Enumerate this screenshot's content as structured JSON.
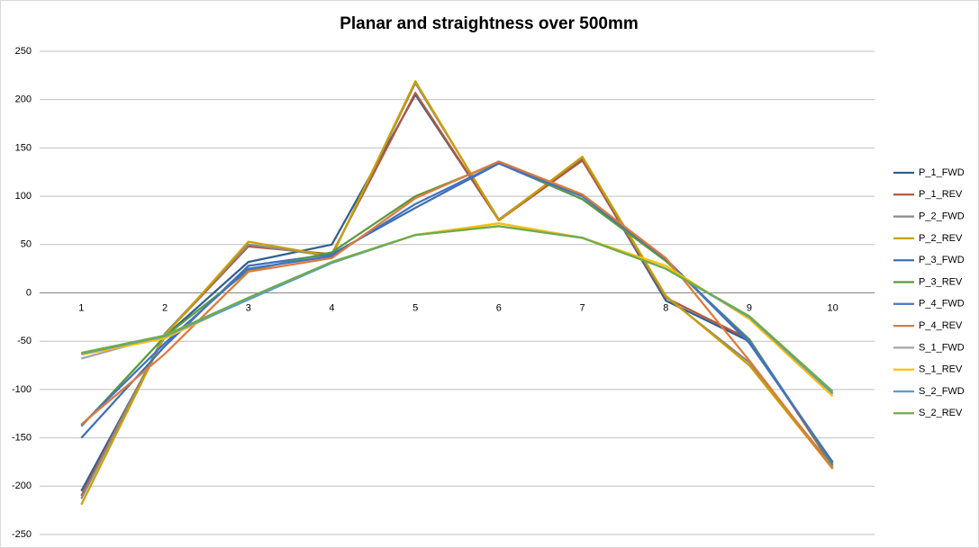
{
  "chart_data": {
    "type": "line",
    "title": "Planar and straightness over 500mm",
    "categories": [
      "1",
      "2",
      "3",
      "4",
      "5",
      "6",
      "7",
      "8",
      "9",
      "10"
    ],
    "ylim": [
      -250,
      250
    ],
    "yticks": [
      -250,
      -200,
      -150,
      -100,
      -50,
      0,
      50,
      100,
      150,
      200,
      250
    ],
    "grid": true,
    "legend": "right",
    "series": [
      {
        "name": "P_1_FWD",
        "color": "#2f5f8f",
        "values": [
          -205,
          -45,
          32,
          50,
          205,
          75,
          138,
          -8,
          -50,
          -178
        ]
      },
      {
        "name": "P_1_REV",
        "color": "#b5573a",
        "values": [
          -210,
          -43,
          48,
          40,
          207,
          75,
          137,
          -5,
          -48,
          -180
        ]
      },
      {
        "name": "P_2_FWD",
        "color": "#8a8a8a",
        "values": [
          -213,
          -42,
          50,
          38,
          217,
          76,
          140,
          -4,
          -72,
          -180
        ]
      },
      {
        "name": "P_2_REV",
        "color": "#c9a000",
        "values": [
          -219,
          -44,
          53,
          38,
          219,
          75,
          141,
          -3,
          -75,
          -182
        ]
      },
      {
        "name": "P_3_FWD",
        "color": "#3f6fb5",
        "values": [
          -150,
          -55,
          28,
          40,
          88,
          134,
          97,
          35,
          -52,
          -175
        ]
      },
      {
        "name": "P_3_REV",
        "color": "#5a9a3a",
        "values": [
          -138,
          -45,
          23,
          42,
          100,
          135,
          97,
          33,
          -48,
          -178
        ]
      },
      {
        "name": "P_4_FWD",
        "color": "#4472c4",
        "values": [
          -137,
          -52,
          25,
          38,
          92,
          134,
          100,
          35,
          -50,
          -176
        ]
      },
      {
        "name": "P_4_REV",
        "color": "#e07a3a",
        "values": [
          -136,
          -63,
          22,
          36,
          98,
          136,
          102,
          36,
          -70,
          -182
        ]
      },
      {
        "name": "S_1_FWD",
        "color": "#a5a5a5",
        "values": [
          -68,
          -44,
          -5,
          32,
          60,
          72,
          57,
          25,
          -25,
          -105
        ]
      },
      {
        "name": "S_1_REV",
        "color": "#ffc000",
        "values": [
          -64,
          -47,
          -6,
          31,
          60,
          72,
          57,
          28,
          -27,
          -107
        ]
      },
      {
        "name": "S_2_FWD",
        "color": "#5b9bd5",
        "values": [
          -63,
          -45,
          -7,
          31,
          60,
          69,
          57,
          25,
          -25,
          -104
        ]
      },
      {
        "name": "S_2_REV",
        "color": "#70ad47",
        "values": [
          -62,
          -44,
          -5,
          32,
          60,
          69,
          57,
          25,
          -24,
          -102
        ]
      }
    ]
  }
}
